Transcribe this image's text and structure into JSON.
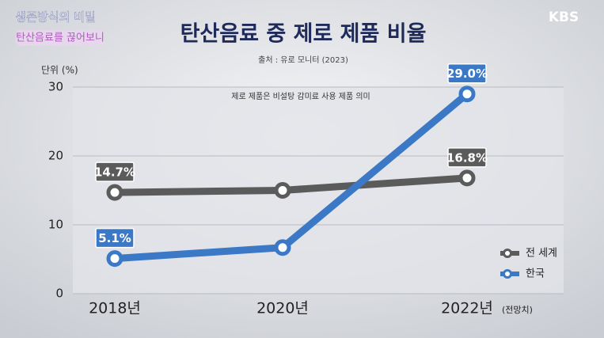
{
  "program": "생존방식의 비밀",
  "episode": "탄산음료를 끊어보니",
  "brand": "KBS",
  "chart_data": {
    "type": "line",
    "title": "탄산음료 중 제로 제품 비율",
    "subtitle": "출처 : 유로 모니터 (2023)",
    "annotation": "제로 제품은 비설탕 감미료 사용 제품 의미",
    "y_label": "단위 (%)",
    "categories": [
      "2018년",
      "2020년",
      "2022년"
    ],
    "x_note": "(전망치)",
    "series": [
      {
        "name": "전 세계",
        "color": "#5b5b5b",
        "values": [
          14.7,
          15,
          16.8
        ],
        "value_labels": [
          "14.7%",
          null,
          "16.8%"
        ]
      },
      {
        "name": "한국",
        "color": "#3b78c6",
        "values": [
          5.1,
          6.7,
          29.0
        ],
        "value_labels": [
          "5.1%",
          null,
          "29.0%"
        ]
      }
    ],
    "ylim": [
      0,
      30
    ],
    "yticks": [
      0,
      10,
      20,
      30
    ],
    "grid": true,
    "legend": "lower right"
  }
}
